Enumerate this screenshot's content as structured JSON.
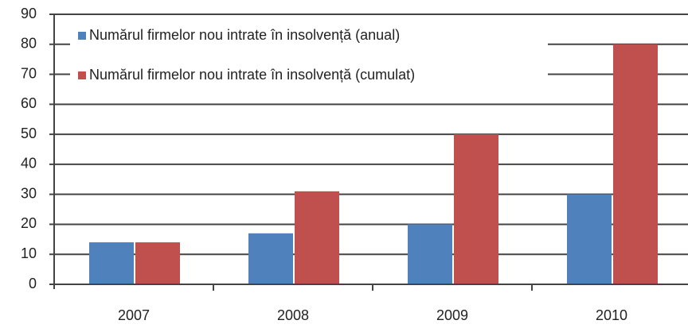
{
  "chart_data": {
    "type": "bar",
    "categories": [
      "2007",
      "2008",
      "2009",
      "2010"
    ],
    "series": [
      {
        "name": "Numărul firmelor nou intrate în insolvență (anual)",
        "color": "#4f81bd",
        "values": [
          14,
          17,
          20,
          30
        ]
      },
      {
        "name": "Numărul firmelor nou intrate în insolvență (cumulat)",
        "color": "#c0504d",
        "values": [
          14,
          31,
          50,
          80
        ]
      }
    ],
    "ylim": [
      0,
      90
    ],
    "yticks": [
      0,
      10,
      20,
      30,
      40,
      50,
      60,
      70,
      80,
      90
    ],
    "grid": true,
    "legend": "top-left"
  }
}
